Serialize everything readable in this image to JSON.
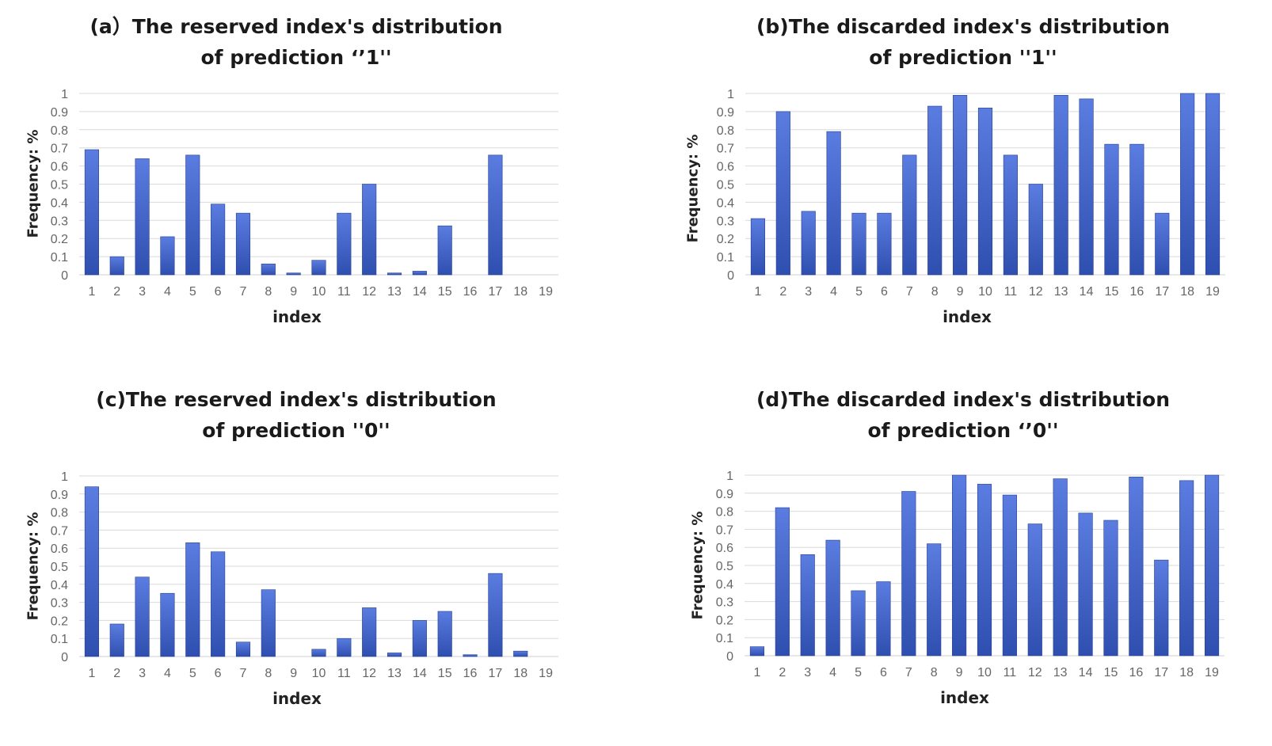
{
  "colors": {
    "bar_top": "#5b7ce0",
    "bar_bottom": "#2f4fb0",
    "bar_edge": "#24408f",
    "grid": "#d9d9d9",
    "axis": "#cfcfcf"
  },
  "chart_data": [
    {
      "id": "a",
      "type": "bar",
      "title": "(a）The reserved index's distribution of prediction ‘’1''",
      "xlabel": "index",
      "ylabel": "Frequency: %",
      "categories": [
        "1",
        "2",
        "3",
        "4",
        "5",
        "6",
        "7",
        "8",
        "9",
        "10",
        "11",
        "12",
        "13",
        "14",
        "15",
        "16",
        "17",
        "18",
        "19"
      ],
      "values": [
        0.69,
        0.1,
        0.64,
        0.21,
        0.66,
        0.39,
        0.34,
        0.06,
        0.01,
        0.08,
        0.34,
        0.5,
        0.01,
        0.02,
        0.27,
        0.0,
        0.66,
        0.0,
        0.0
      ],
      "yticks": [
        "0",
        "0.1",
        "0.2",
        "0.3",
        "0.4",
        "0.5",
        "0.6",
        "0.7",
        "0.8",
        "0.9",
        "1"
      ],
      "ylim": [
        0,
        1
      ],
      "grid": true
    },
    {
      "id": "b",
      "type": "bar",
      "title": "(b)The discarded index's distribution of prediction ''1''",
      "xlabel": "index",
      "ylabel": "Frequency: %",
      "categories": [
        "1",
        "2",
        "3",
        "4",
        "5",
        "6",
        "7",
        "8",
        "9",
        "10",
        "11",
        "12",
        "13",
        "14",
        "15",
        "16",
        "17",
        "18",
        "19"
      ],
      "values": [
        0.31,
        0.9,
        0.35,
        0.79,
        0.34,
        0.34,
        0.66,
        0.93,
        0.99,
        0.92,
        0.66,
        0.5,
        0.99,
        0.97,
        0.72,
        0.72,
        0.34,
        1.0,
        1.0
      ],
      "yticks": [
        "0",
        "0.1",
        "0.2",
        "0.3",
        "0.4",
        "0.5",
        "0.6",
        "0.7",
        "0.8",
        "0.9",
        "1"
      ],
      "ylim": [
        0,
        1
      ],
      "grid": true
    },
    {
      "id": "c",
      "type": "bar",
      "title": "(c)The reserved index's distribution of prediction ''0''",
      "xlabel": "index",
      "ylabel": "Frequency: %",
      "categories": [
        "1",
        "2",
        "3",
        "4",
        "5",
        "6",
        "7",
        "8",
        "9",
        "10",
        "11",
        "12",
        "13",
        "14",
        "15",
        "16",
        "17",
        "18",
        "19"
      ],
      "values": [
        0.94,
        0.18,
        0.44,
        0.35,
        0.63,
        0.58,
        0.08,
        0.37,
        0.0,
        0.04,
        0.1,
        0.27,
        0.02,
        0.2,
        0.25,
        0.01,
        0.46,
        0.03,
        0.0
      ],
      "yticks": [
        "0",
        "0.1",
        "0.2",
        "0.3",
        "0.4",
        "0.5",
        "0.6",
        "0.7",
        "0.8",
        "0.9",
        "1"
      ],
      "ylim": [
        0,
        1
      ],
      "grid": true
    },
    {
      "id": "d",
      "type": "bar",
      "title": "(d)The discarded index's distribution of prediction ‘’0''",
      "xlabel": "index",
      "ylabel": "Frequency: %",
      "categories": [
        "1",
        "2",
        "3",
        "4",
        "5",
        "6",
        "7",
        "8",
        "9",
        "10",
        "11",
        "12",
        "13",
        "14",
        "15",
        "16",
        "17",
        "18",
        "19"
      ],
      "values": [
        0.05,
        0.82,
        0.56,
        0.64,
        0.36,
        0.41,
        0.91,
        0.62,
        1.0,
        0.95,
        0.89,
        0.73,
        0.98,
        0.79,
        0.75,
        0.99,
        0.53,
        0.97,
        1.0
      ],
      "yticks": [
        "0",
        "0.1",
        "0.2",
        "0.3",
        "0.4",
        "0.5",
        "0.6",
        "0.7",
        "0.8",
        "0.9",
        "1"
      ],
      "ylim": [
        0,
        1
      ],
      "grid": true
    }
  ]
}
